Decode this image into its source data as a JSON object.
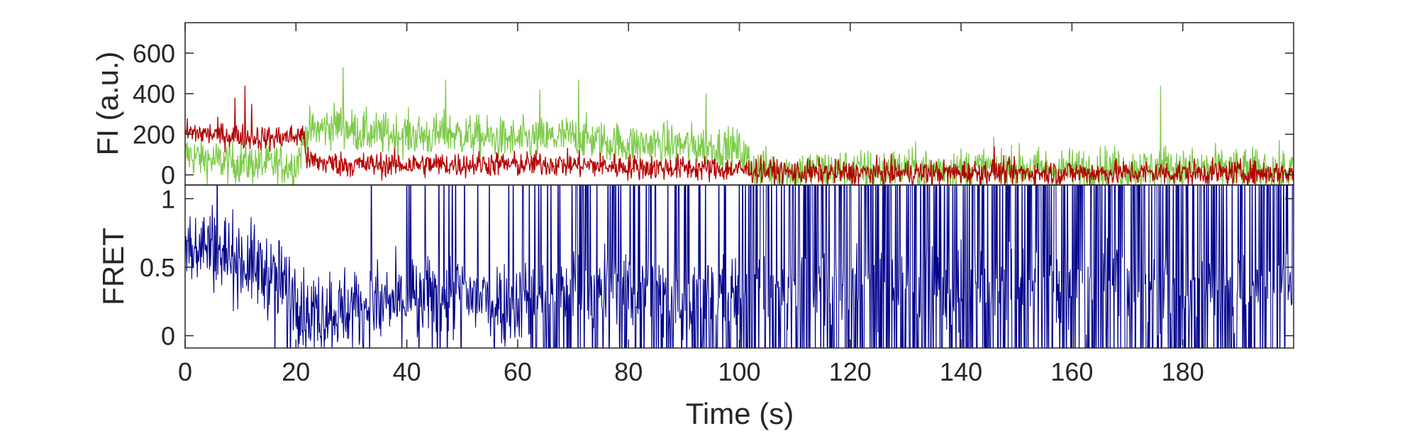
{
  "chart_data": [
    {
      "type": "line",
      "panel": "top",
      "ylabel": "FI (a.u.)",
      "xlabel": "",
      "xlim": [
        0,
        200
      ],
      "ylim": [
        -50,
        750
      ],
      "yticks": [
        0,
        200,
        400,
        600
      ],
      "ytick_labels": [
        "0",
        "200",
        "400",
        "600"
      ],
      "grid": false,
      "series": [
        {
          "color": "#7ecb4b",
          "note_segments": "green channel (donor-like trace)",
          "x": [
            0,
            5,
            10,
            15,
            20,
            22,
            25,
            28,
            30,
            35,
            40,
            45,
            47,
            50,
            55,
            60,
            65,
            70,
            75,
            80,
            85,
            90,
            95,
            100,
            103,
            105,
            110,
            115,
            120,
            125,
            130,
            135,
            140,
            145,
            150,
            155,
            160,
            165,
            170,
            175,
            176,
            180,
            185,
            190,
            195,
            200
          ],
          "values": [
            100,
            70,
            60,
            50,
            50,
            210,
            230,
            250,
            220,
            200,
            200,
            190,
            210,
            195,
            180,
            170,
            180,
            190,
            165,
            150,
            150,
            145,
            140,
            120,
            30,
            25,
            20,
            25,
            20,
            25,
            30,
            30,
            30,
            35,
            30,
            30,
            30,
            35,
            30,
            30,
            50,
            30,
            30,
            25,
            25,
            20
          ],
          "noise": 75,
          "spikes": [
            [
              28.5,
              530
            ],
            [
              47,
              470
            ],
            [
              64,
              420
            ],
            [
              71,
              470
            ],
            [
              94,
              400
            ],
            [
              176,
              440
            ]
          ]
        },
        {
          "color": "#b30000",
          "x": [
            0,
            5,
            10,
            15,
            20,
            21.5,
            22,
            25,
            30,
            35,
            40,
            45,
            50,
            55,
            60,
            65,
            70,
            75,
            80,
            85,
            90,
            95,
            100,
            105,
            110,
            115,
            120,
            125,
            130,
            135,
            140,
            145,
            150,
            155,
            160,
            165,
            170,
            175,
            180,
            185,
            190,
            195,
            200
          ],
          "values": [
            210,
            200,
            190,
            180,
            190,
            200,
            70,
            60,
            50,
            50,
            50,
            50,
            50,
            55,
            50,
            55,
            50,
            45,
            40,
            35,
            35,
            30,
            25,
            20,
            10,
            10,
            10,
            10,
            10,
            10,
            10,
            15,
            10,
            10,
            10,
            10,
            10,
            10,
            10,
            10,
            10,
            10,
            10
          ],
          "noise": 45,
          "spikes": [
            [
              10.8,
              440
            ],
            [
              9,
              380
            ],
            [
              12,
              350
            ],
            [
              146,
              140
            ]
          ]
        }
      ]
    },
    {
      "type": "line",
      "panel": "bottom",
      "ylabel": "FRET",
      "xlabel": "Time (s)",
      "xlim": [
        0,
        200
      ],
      "ylim": [
        -0.09,
        1.1
      ],
      "yticks": [
        0,
        0.5,
        1
      ],
      "ytick_labels": [
        "0",
        "0.5",
        "1"
      ],
      "xticks": [
        0,
        20,
        40,
        60,
        80,
        100,
        120,
        140,
        160,
        180
      ],
      "xtick_labels": [
        "0",
        "20",
        "40",
        "60",
        "80",
        "100",
        "120",
        "140",
        "160",
        "180"
      ],
      "grid": false,
      "series": [
        {
          "color": "#00008b",
          "x": [
            0,
            5,
            10,
            15,
            20,
            22,
            25,
            30,
            35,
            40,
            45,
            50,
            55,
            60,
            65,
            70,
            75,
            80,
            85,
            90,
            95,
            100,
            110,
            120,
            130,
            140,
            150,
            160,
            170,
            180,
            190,
            200
          ],
          "values": [
            0.7,
            0.65,
            0.55,
            0.45,
            0.3,
            0.15,
            0.18,
            0.2,
            0.22,
            0.25,
            0.3,
            0.3,
            0.25,
            0.25,
            0.3,
            0.35,
            0.35,
            0.35,
            0.3,
            0.3,
            0.3,
            0.3,
            0.35,
            0.35,
            0.35,
            0.35,
            0.35,
            0.35,
            0.35,
            0.35,
            0.35,
            0.35
          ],
          "noise": 0.22,
          "jump_rate_segments": [
            [
              0,
              20,
              0.04
            ],
            [
              20,
              38,
              0.01
            ],
            [
              38,
              62,
              0.12
            ],
            [
              62,
              102,
              0.35
            ],
            [
              102,
              200,
              0.55
            ]
          ]
        }
      ]
    }
  ]
}
